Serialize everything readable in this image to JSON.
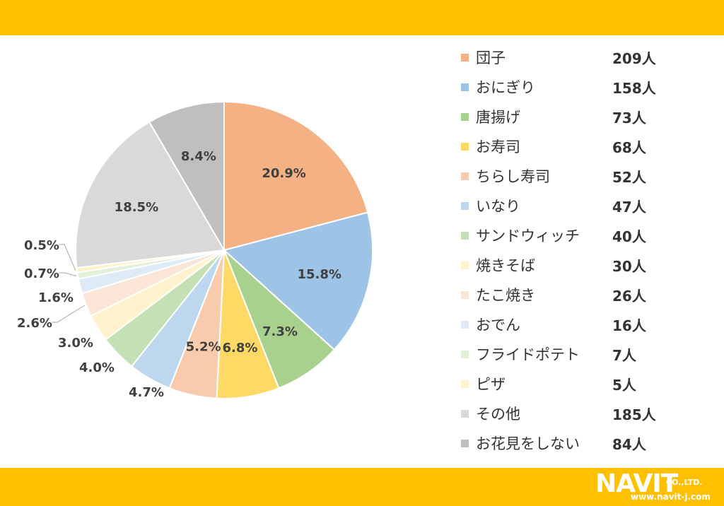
{
  "colors": {
    "band": "#ffc000",
    "text": "#333333"
  },
  "logo": {
    "name": "NAVIT",
    "company": "CO.,LTD.",
    "url": "www.navit-j.com"
  },
  "chart_data": {
    "type": "pie",
    "categories": [
      "団子",
      "おにぎり",
      "唐揚げ",
      "お寿司",
      "ちらし寿司",
      "いなり",
      "サンドウィッチ",
      "焼きそば",
      "たこ焼き",
      "おでん",
      "フライドポテト",
      "ピザ",
      "その他",
      "お花見をしない"
    ],
    "values": [
      209,
      158,
      73,
      68,
      52,
      47,
      40,
      30,
      26,
      16,
      7,
      5,
      185,
      84
    ],
    "value_labels": [
      "209人",
      "158人",
      "73人",
      "68人",
      "52人",
      "47人",
      "40人",
      "30人",
      "26人",
      "16人",
      "7人",
      "5人",
      "185人",
      "84人"
    ],
    "percent_labels": [
      "20.9%",
      "15.8%",
      "7.3%",
      "6.8%",
      "5.2%",
      "4.7%",
      "4.0%",
      "3.0%",
      "2.6%",
      "1.6%",
      "0.7%",
      "0.5%",
      "18.5%",
      "8.4%"
    ],
    "colors": [
      "#f4b183",
      "#9dc3e6",
      "#a9d18e",
      "#ffd966",
      "#f8cbad",
      "#bdd7ee",
      "#c5e0b4",
      "#fff2cc",
      "#fbe5d6",
      "#deebf7",
      "#e2f0d9",
      "#fff2cc",
      "#d9d9d9",
      "#bfbfbf"
    ],
    "legend_position": "right",
    "title": ""
  }
}
